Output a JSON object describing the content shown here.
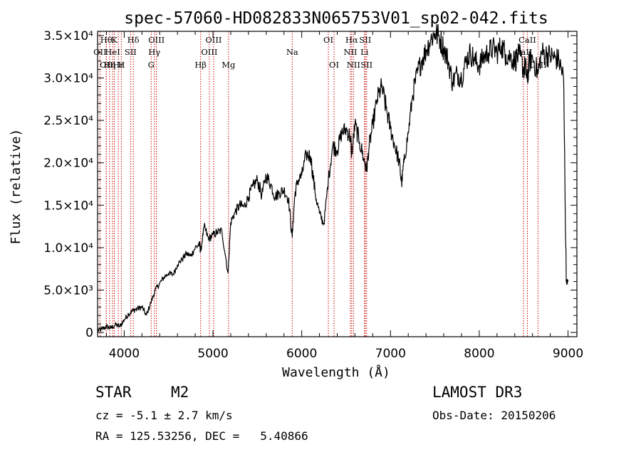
{
  "chart_data": {
    "type": "line",
    "title": "spec-57060-HD082833N065753V01_sp02-042.fits",
    "xlabel": "Wavelength (Å)",
    "ylabel": "Flux (relative)",
    "xlim": [
      3700,
      9100
    ],
    "ylim": [
      -500,
      35500
    ],
    "x_ticks": [
      4000,
      5000,
      6000,
      7000,
      8000,
      9000
    ],
    "y_ticks": [
      {
        "value": 0,
        "label": "0"
      },
      {
        "value": 5000,
        "label": "5.0×10³"
      },
      {
        "value": 10000,
        "label": "1.0×10⁴"
      },
      {
        "value": 15000,
        "label": "1.5×10⁴"
      },
      {
        "value": 20000,
        "label": "2.0×10⁴"
      },
      {
        "value": 25000,
        "label": "2.5×10⁴"
      },
      {
        "value": 30000,
        "label": "3.0×10⁴"
      },
      {
        "value": 35000,
        "label": "3.5×10⁴"
      }
    ],
    "series": [
      {
        "name": "flux",
        "points": [
          [
            3700,
            200
          ],
          [
            3750,
            400
          ],
          [
            3800,
            700
          ],
          [
            3850,
            500
          ],
          [
            3900,
            900
          ],
          [
            3950,
            700
          ],
          [
            4000,
            1500
          ],
          [
            4050,
            2200
          ],
          [
            4100,
            2600
          ],
          [
            4150,
            2800
          ],
          [
            4200,
            3000
          ],
          [
            4250,
            2000
          ],
          [
            4300,
            3500
          ],
          [
            4350,
            5000
          ],
          [
            4400,
            5800
          ],
          [
            4450,
            6500
          ],
          [
            4500,
            7000
          ],
          [
            4550,
            6800
          ],
          [
            4600,
            8000
          ],
          [
            4650,
            8600
          ],
          [
            4700,
            9300
          ],
          [
            4750,
            9000
          ],
          [
            4800,
            10000
          ],
          [
            4850,
            10400
          ],
          [
            4861,
            9500
          ],
          [
            4900,
            12500
          ],
          [
            4950,
            11000
          ],
          [
            5000,
            11500
          ],
          [
            5050,
            11800
          ],
          [
            5100,
            12000
          ],
          [
            5170,
            7000
          ],
          [
            5200,
            13000
          ],
          [
            5250,
            14200
          ],
          [
            5300,
            15000
          ],
          [
            5350,
            14800
          ],
          [
            5400,
            16000
          ],
          [
            5450,
            17200
          ],
          [
            5500,
            18000
          ],
          [
            5550,
            16200
          ],
          [
            5600,
            18500
          ],
          [
            5650,
            17500
          ],
          [
            5700,
            16000
          ],
          [
            5750,
            16500
          ],
          [
            5800,
            16800
          ],
          [
            5850,
            15800
          ],
          [
            5893,
            11200
          ],
          [
            5920,
            16000
          ],
          [
            5950,
            17800
          ],
          [
            6000,
            18500
          ],
          [
            6050,
            21000
          ],
          [
            6100,
            20800
          ],
          [
            6150,
            16500
          ],
          [
            6200,
            14000
          ],
          [
            6250,
            12800
          ],
          [
            6300,
            18000
          ],
          [
            6350,
            22000
          ],
          [
            6400,
            21500
          ],
          [
            6450,
            23500
          ],
          [
            6500,
            24000
          ],
          [
            6550,
            23000
          ],
          [
            6563,
            21000
          ],
          [
            6600,
            24500
          ],
          [
            6650,
            22500
          ],
          [
            6700,
            20500
          ],
          [
            6730,
            19000
          ],
          [
            6760,
            22000
          ],
          [
            6800,
            24500
          ],
          [
            6850,
            27500
          ],
          [
            6900,
            29000
          ],
          [
            6950,
            26500
          ],
          [
            7000,
            24000
          ],
          [
            7050,
            22000
          ],
          [
            7100,
            20000
          ],
          [
            7125,
            17500
          ],
          [
            7150,
            20000
          ],
          [
            7200,
            23500
          ],
          [
            7250,
            28000
          ],
          [
            7300,
            30500
          ],
          [
            7350,
            32000
          ],
          [
            7400,
            33200
          ],
          [
            7450,
            34500
          ],
          [
            7500,
            35300
          ],
          [
            7550,
            34800
          ],
          [
            7600,
            33500
          ],
          [
            7650,
            32000
          ],
          [
            7700,
            29500
          ],
          [
            7750,
            30500
          ],
          [
            7800,
            30000
          ],
          [
            7850,
            32000
          ],
          [
            7900,
            33000
          ],
          [
            7950,
            32000
          ],
          [
            8000,
            31500
          ],
          [
            8050,
            32500
          ],
          [
            8100,
            33000
          ],
          [
            8150,
            33500
          ],
          [
            8200,
            33000
          ],
          [
            8250,
            33800
          ],
          [
            8300,
            32800
          ],
          [
            8350,
            32500
          ],
          [
            8400,
            32000
          ],
          [
            8450,
            32800
          ],
          [
            8498,
            31000
          ],
          [
            8520,
            31500
          ],
          [
            8542,
            29500
          ],
          [
            8560,
            31800
          ],
          [
            8600,
            32500
          ],
          [
            8662,
            30500
          ],
          [
            8700,
            33000
          ],
          [
            8750,
            32800
          ],
          [
            8800,
            32600
          ],
          [
            8850,
            32400
          ],
          [
            8900,
            32000
          ],
          [
            8950,
            30000
          ],
          [
            8980,
            6000
          ],
          [
            9000,
            6000
          ]
        ]
      }
    ],
    "lines": [
      {
        "wl": 3727,
        "label": "OII",
        "row": 1
      },
      {
        "wl": 3798,
        "label": "Hθ",
        "row": 0
      },
      {
        "wl": 3799,
        "label": "OII",
        "row": 2
      },
      {
        "wl": 3835,
        "label": "Hη",
        "row": 2
      },
      {
        "wl": 3869,
        "label": "HeI",
        "row": 1
      },
      {
        "wl": 3889,
        "label": "K",
        "row": 0
      },
      {
        "wl": 3934,
        "label": "Hε",
        "row": 2
      },
      {
        "wl": 3968,
        "label": "H",
        "row": 2
      },
      {
        "wl": 4072,
        "label": "SII",
        "row": 1
      },
      {
        "wl": 4102,
        "label": "Hδ",
        "row": 0
      },
      {
        "wl": 4304,
        "label": "G",
        "row": 2
      },
      {
        "wl": 4340,
        "label": "Hγ",
        "row": 1
      },
      {
        "wl": 4363,
        "label": "OIII",
        "row": 0
      },
      {
        "wl": 4861,
        "label": "Hβ",
        "row": 2
      },
      {
        "wl": 4959,
        "label": "OIII",
        "row": 1
      },
      {
        "wl": 5007,
        "label": "OIII",
        "row": 0
      },
      {
        "wl": 5175,
        "label": "Mg",
        "row": 2
      },
      {
        "wl": 5893,
        "label": "Na",
        "row": 1
      },
      {
        "wl": 6300,
        "label": "OI",
        "row": 0
      },
      {
        "wl": 6364,
        "label": "OI",
        "row": 2
      },
      {
        "wl": 6548,
        "label": "NII",
        "row": 1
      },
      {
        "wl": 6563,
        "label": "Hα",
        "row": 0
      },
      {
        "wl": 6583,
        "label": "NII",
        "row": 2
      },
      {
        "wl": 6707,
        "label": "Li",
        "row": 1
      },
      {
        "wl": 6716,
        "label": "SII",
        "row": 0
      },
      {
        "wl": 6731,
        "label": "SII",
        "row": 2
      },
      {
        "wl": 8498,
        "label": "CaII",
        "row": 1
      },
      {
        "wl": 8542,
        "label": "CaII",
        "row": 0
      },
      {
        "wl": 8662,
        "label": "CaII",
        "row": 2
      }
    ],
    "colors": {
      "line_marker": "#cc0000",
      "spectrum": "#000000",
      "axes": "#000000"
    }
  },
  "info": {
    "object_class": "STAR",
    "subclass": "M2",
    "survey": "LAMOST DR3",
    "cz": "cz = -5.1 ± 2.7 km/s",
    "obs_date": "Obs-Date: 20150206",
    "coords": "RA = 125.53256, DEC =   5.40866"
  }
}
